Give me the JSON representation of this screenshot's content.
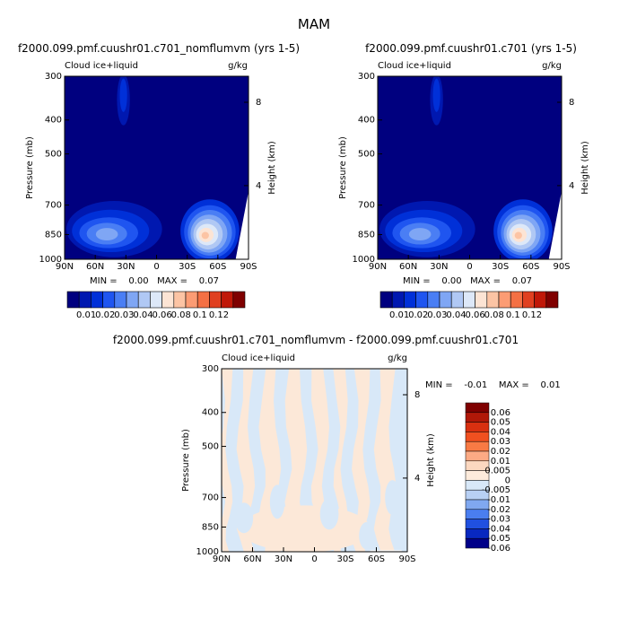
{
  "page_title": "MAM",
  "chart_data": [
    {
      "type": "heatmap",
      "title": "f2000.099.pmf.cuushr01.c701_nomflumvm (yrs 1-5)",
      "variable": "Cloud ice+liquid",
      "units": "g/kg",
      "ylabel": "Pressure (mb)",
      "y2label": "Height (km)",
      "x_ticks": [
        "90N",
        "60N",
        "30N",
        "0",
        "30S",
        "60S",
        "90S"
      ],
      "y_ticks": [
        "300",
        "400",
        "500",
        "700",
        "850",
        "1000"
      ],
      "y2_ticks": [
        "8",
        "4"
      ],
      "minmax_text": "MIN =    0.00   MAX =    0.07",
      "colorbar_labels": [
        "0.01",
        "0.02",
        "0.03",
        "0.04",
        "0.06",
        "0.08",
        "0.1",
        "0.12"
      ],
      "blobs": [
        {
          "lat": 32,
          "p": 350,
          "value": 0.02,
          "note": "upper-level thin column"
        },
        {
          "lat": 50,
          "p": 800,
          "value": 0.035,
          "note": "NH low cloud"
        },
        {
          "lat": 35,
          "p": 820,
          "value": 0.03
        },
        {
          "lat": -45,
          "p": 830,
          "value": 0.07,
          "note": "SH low cloud max"
        }
      ]
    },
    {
      "type": "heatmap",
      "title": "f2000.099.pmf.cuushr01.c701 (yrs 1-5)",
      "variable": "Cloud ice+liquid",
      "units": "g/kg",
      "ylabel": "Pressure (mb)",
      "y2label": "Height (km)",
      "x_ticks": [
        "90N",
        "60N",
        "30N",
        "0",
        "30S",
        "60S",
        "90S"
      ],
      "y_ticks": [
        "300",
        "400",
        "500",
        "700",
        "850",
        "1000"
      ],
      "y2_ticks": [
        "8",
        "4"
      ],
      "minmax_text": "MIN =    0.00   MAX =    0.07",
      "colorbar_labels": [
        "0.01",
        "0.02",
        "0.03",
        "0.04",
        "0.06",
        "0.08",
        "0.1",
        "0.12"
      ],
      "blobs": [
        {
          "lat": 32,
          "p": 350,
          "value": 0.02
        },
        {
          "lat": 50,
          "p": 800,
          "value": 0.035
        },
        {
          "lat": 35,
          "p": 820,
          "value": 0.03
        },
        {
          "lat": -45,
          "p": 830,
          "value": 0.07
        }
      ]
    },
    {
      "type": "heatmap",
      "title": "f2000.099.pmf.cuushr01.c701_nomflumvm - f2000.099.pmf.cuushr01.c701",
      "variable": "Cloud ice+liquid",
      "units": "g/kg",
      "ylabel": "Pressure (mb)",
      "y2label": "Height (km)",
      "x_ticks": [
        "90N",
        "60N",
        "30N",
        "0",
        "30S",
        "60S",
        "90S"
      ],
      "y_ticks": [
        "300",
        "400",
        "500",
        "700",
        "850",
        "1000"
      ],
      "y2_ticks": [
        "8",
        "4"
      ],
      "minmax_text": "MIN =    -0.01    MAX =    0.01",
      "colorbar_labels": [
        "0.06",
        "0.05",
        "0.04",
        "0.03",
        "0.02",
        "0.01",
        "0.005",
        "0",
        "-0.005",
        "-0.01",
        "-0.02",
        "-0.03",
        "-0.04",
        "-0.05",
        "-0.06"
      ],
      "min": -0.01,
      "max": 0.01
    }
  ],
  "colors": {
    "seq": [
      "#00007f",
      "#0018b0",
      "#0030d8",
      "#1f55f0",
      "#4a7ef4",
      "#7fa6f4",
      "#b0c8f4",
      "#dde8f8",
      "#fce4d4",
      "#fcc4a4",
      "#fc9c74",
      "#f47044",
      "#e04020",
      "#c01808",
      "#7f0000"
    ],
    "diff": [
      "#7f0000",
      "#b01808",
      "#d83010",
      "#f05020",
      "#f87a44",
      "#fcaa84",
      "#fcd8c0",
      "#fdebdc",
      "#d8e8f8",
      "#b8d0f4",
      "#80a8f0",
      "#4a7ef0",
      "#2050e0",
      "#0828c0",
      "#000088"
    ]
  }
}
